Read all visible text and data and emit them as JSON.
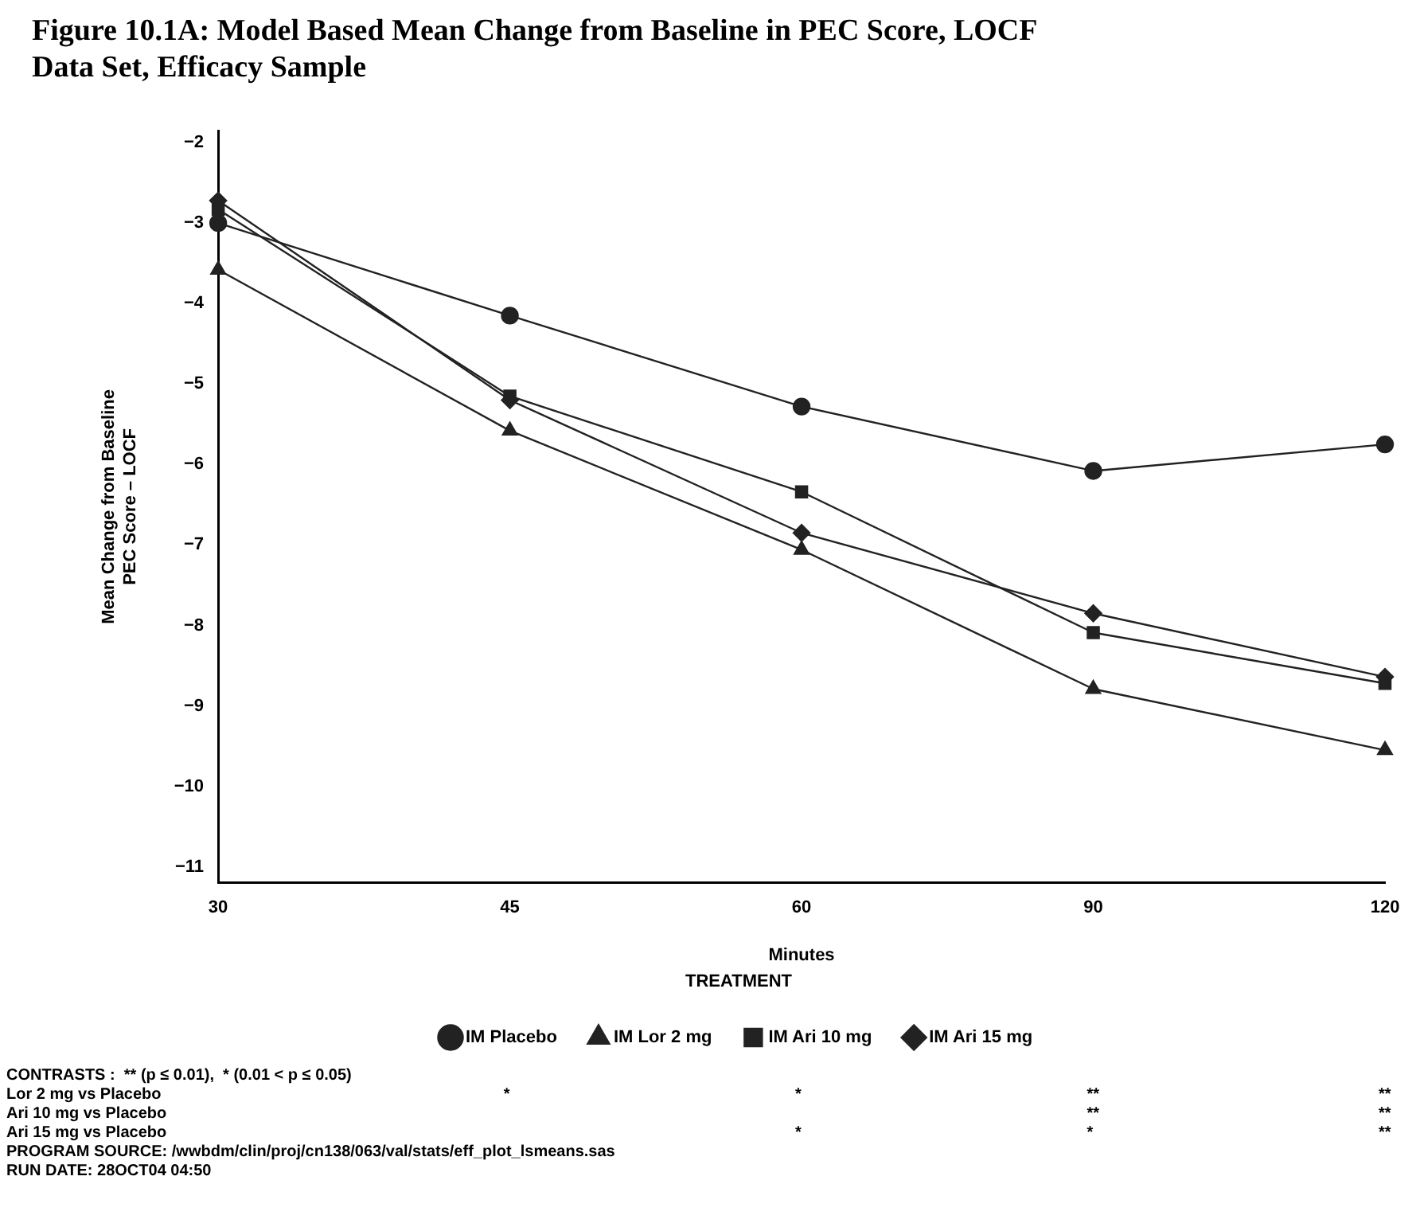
{
  "chart_data": {
    "type": "line",
    "title": "Figure 10.1A: Model Based Mean Change from Baseline in PEC Score, LOCF Data Set, Efficacy Sample",
    "xlabel": "Minutes",
    "ylabel": "Mean Change from Baseline\nPEC Score – LOCF",
    "legend_title": "TREATMENT",
    "categories": [
      "30",
      "45",
      "60",
      "90",
      "120"
    ],
    "series": [
      {
        "name": "IM Placebo",
        "color": "#222222",
        "marker": "circle",
        "values": [
          -3.0,
          -4.15,
          -5.28,
          -6.08,
          -5.75
        ]
      },
      {
        "name": "IM Lor 2 mg",
        "color": "#222222",
        "marker": "triangle",
        "values": [
          -3.58,
          -5.58,
          -7.06,
          -8.79,
          -9.55
        ]
      },
      {
        "name": "IM Ari 10 mg",
        "color": "#222222",
        "marker": "square",
        "values": [
          -2.83,
          -5.15,
          -6.34,
          -8.09,
          -8.72
        ]
      },
      {
        "name": "IM Ari 15 mg",
        "color": "#222222",
        "marker": "diamond",
        "values": [
          -2.72,
          -5.2,
          -6.85,
          -7.85,
          -8.64
        ]
      }
    ],
    "ylim": [
      -11.2,
      -1.85
    ],
    "yticks": [
      -2,
      -3,
      -4,
      -5,
      -6,
      -7,
      -8,
      -9,
      -10,
      -11
    ],
    "grid": false,
    "legend": "bottom",
    "line_style": "solid",
    "annotations": [
      "CONTRASTS :  ** (p ≤ 0.01),  * (0.01 < p ≤ 0.05)",
      "Lor 2 mg vs Placebo\t\t*\t*\t**\t**",
      "Ari 10 mg vs Placebo\t\t\t\t**\t**",
      "Ari 15 mg vs Placebo\t\t\t*\t*\t**",
      "PROGRAM SOURCE: /wwbdm/clin/proj/cn138/063/val/stats/eff_plot_lsmeans.sas",
      "RUN DATE: 28OCT04 04:50"
    ]
  }
}
